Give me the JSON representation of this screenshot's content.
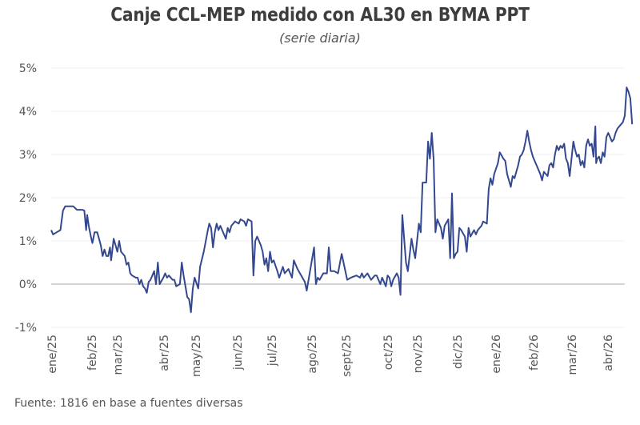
{
  "chart_data": {
    "type": "line",
    "title": "Canje CCL-MEP medido con AL30 en BYMA PPT",
    "subtitle": "(serie diaria)",
    "xlabel": "",
    "ylabel": "",
    "ylim": [
      -1,
      5
    ],
    "xlim": [
      0,
      15.6
    ],
    "grid": true,
    "legend": "none",
    "yticks": [
      -1,
      0,
      1,
      2,
      3,
      4,
      5
    ],
    "ytick_labels": [
      "-1%",
      "0%",
      "1%",
      "2%",
      "3%",
      "4%",
      "5%"
    ],
    "xtick_labels": [
      "ene/25",
      "feb/25",
      "mar/25",
      "abr/25",
      "may/25",
      "jun/25",
      "jul/25",
      "ago/25",
      "sept/25",
      "oct/25",
      "nov/25",
      "dic/25",
      "ene/26",
      "feb/26",
      "mar/26",
      "abr/26"
    ],
    "series": [
      {
        "name": "Canje CCL-MEP AL30",
        "color": "#34488f",
        "x_unit": "months since ene/25",
        "points": [
          [
            0.0,
            1.25
          ],
          [
            0.05,
            1.15
          ],
          [
            0.15,
            1.2
          ],
          [
            0.25,
            1.25
          ],
          [
            0.32,
            1.7
          ],
          [
            0.38,
            1.8
          ],
          [
            0.5,
            1.8
          ],
          [
            0.6,
            1.8
          ],
          [
            0.7,
            1.72
          ],
          [
            0.85,
            1.72
          ],
          [
            0.9,
            1.7
          ],
          [
            0.95,
            1.25
          ],
          [
            0.98,
            1.6
          ],
          [
            1.02,
            1.35
          ],
          [
            1.08,
            1.1
          ],
          [
            1.12,
            0.95
          ],
          [
            1.18,
            1.2
          ],
          [
            1.25,
            1.2
          ],
          [
            1.3,
            1.05
          ],
          [
            1.35,
            0.9
          ],
          [
            1.4,
            0.65
          ],
          [
            1.45,
            0.8
          ],
          [
            1.5,
            0.65
          ],
          [
            1.55,
            0.65
          ],
          [
            1.6,
            0.85
          ],
          [
            1.63,
            0.55
          ],
          [
            1.7,
            1.05
          ],
          [
            1.75,
            0.9
          ],
          [
            1.8,
            0.75
          ],
          [
            1.85,
            1.0
          ],
          [
            1.9,
            0.75
          ],
          [
            2.0,
            0.65
          ],
          [
            2.05,
            0.45
          ],
          [
            2.1,
            0.5
          ],
          [
            2.15,
            0.25
          ],
          [
            2.2,
            0.2
          ],
          [
            2.3,
            0.15
          ],
          [
            2.35,
            0.15
          ],
          [
            2.4,
            0.0
          ],
          [
            2.45,
            0.1
          ],
          [
            2.5,
            -0.05
          ],
          [
            2.55,
            -0.1
          ],
          [
            2.6,
            -0.2
          ],
          [
            2.65,
            0.05
          ],
          [
            2.7,
            0.1
          ],
          [
            2.8,
            0.3
          ],
          [
            2.85,
            0.0
          ],
          [
            2.9,
            0.5
          ],
          [
            2.95,
            0.0
          ],
          [
            3.05,
            0.15
          ],
          [
            3.1,
            0.25
          ],
          [
            3.15,
            0.15
          ],
          [
            3.2,
            0.2
          ],
          [
            3.3,
            0.1
          ],
          [
            3.35,
            0.1
          ],
          [
            3.4,
            -0.05
          ],
          [
            3.5,
            0.0
          ],
          [
            3.55,
            0.5
          ],
          [
            3.6,
            0.2
          ],
          [
            3.7,
            -0.3
          ],
          [
            3.75,
            -0.35
          ],
          [
            3.8,
            -0.65
          ],
          [
            3.85,
            -0.1
          ],
          [
            3.9,
            0.15
          ],
          [
            4.0,
            -0.1
          ],
          [
            4.05,
            0.4
          ],
          [
            4.15,
            0.75
          ],
          [
            4.25,
            1.2
          ],
          [
            4.3,
            1.4
          ],
          [
            4.35,
            1.3
          ],
          [
            4.4,
            0.85
          ],
          [
            4.45,
            1.2
          ],
          [
            4.5,
            1.4
          ],
          [
            4.55,
            1.25
          ],
          [
            4.6,
            1.35
          ],
          [
            4.7,
            1.15
          ],
          [
            4.75,
            1.05
          ],
          [
            4.8,
            1.3
          ],
          [
            4.85,
            1.2
          ],
          [
            4.9,
            1.35
          ],
          [
            5.0,
            1.45
          ],
          [
            5.1,
            1.4
          ],
          [
            5.15,
            1.5
          ],
          [
            5.25,
            1.45
          ],
          [
            5.3,
            1.35
          ],
          [
            5.35,
            1.5
          ],
          [
            5.45,
            1.45
          ],
          [
            5.5,
            0.2
          ],
          [
            5.55,
            1.0
          ],
          [
            5.6,
            1.1
          ],
          [
            5.7,
            0.9
          ],
          [
            5.75,
            0.75
          ],
          [
            5.8,
            0.45
          ],
          [
            5.85,
            0.6
          ],
          [
            5.9,
            0.3
          ],
          [
            5.95,
            0.75
          ],
          [
            6.0,
            0.5
          ],
          [
            6.05,
            0.55
          ],
          [
            6.15,
            0.3
          ],
          [
            6.2,
            0.15
          ],
          [
            6.3,
            0.4
          ],
          [
            6.35,
            0.25
          ],
          [
            6.45,
            0.35
          ],
          [
            6.55,
            0.15
          ],
          [
            6.6,
            0.55
          ],
          [
            6.7,
            0.35
          ],
          [
            6.8,
            0.2
          ],
          [
            6.9,
            0.05
          ],
          [
            6.95,
            -0.15
          ],
          [
            7.05,
            0.35
          ],
          [
            7.15,
            0.85
          ],
          [
            7.2,
            0.0
          ],
          [
            7.25,
            0.15
          ],
          [
            7.3,
            0.1
          ],
          [
            7.4,
            0.25
          ],
          [
            7.5,
            0.25
          ],
          [
            7.55,
            0.85
          ],
          [
            7.6,
            0.3
          ],
          [
            7.7,
            0.3
          ],
          [
            7.8,
            0.25
          ],
          [
            7.9,
            0.7
          ],
          [
            7.95,
            0.5
          ],
          [
            8.05,
            0.1
          ],
          [
            8.15,
            0.15
          ],
          [
            8.3,
            0.2
          ],
          [
            8.4,
            0.15
          ],
          [
            8.45,
            0.25
          ],
          [
            8.5,
            0.15
          ],
          [
            8.6,
            0.25
          ],
          [
            8.7,
            0.1
          ],
          [
            8.8,
            0.2
          ],
          [
            8.85,
            0.2
          ],
          [
            8.95,
            0.0
          ],
          [
            9.0,
            0.15
          ],
          [
            9.05,
            0.05
          ],
          [
            9.1,
            -0.05
          ],
          [
            9.15,
            0.2
          ],
          [
            9.2,
            0.15
          ],
          [
            9.25,
            -0.05
          ],
          [
            9.3,
            0.1
          ],
          [
            9.4,
            0.25
          ],
          [
            9.45,
            0.15
          ],
          [
            9.5,
            -0.25
          ],
          [
            9.55,
            1.6
          ],
          [
            9.65,
            0.5
          ],
          [
            9.7,
            0.3
          ],
          [
            9.8,
            1.05
          ],
          [
            9.85,
            0.8
          ],
          [
            9.9,
            0.6
          ],
          [
            10.0,
            1.4
          ],
          [
            10.05,
            1.2
          ],
          [
            10.1,
            2.35
          ],
          [
            10.2,
            2.35
          ],
          [
            10.25,
            3.3
          ],
          [
            10.3,
            2.9
          ],
          [
            10.35,
            3.5
          ],
          [
            10.4,
            2.9
          ],
          [
            10.45,
            1.2
          ],
          [
            10.5,
            1.5
          ],
          [
            10.6,
            1.3
          ],
          [
            10.65,
            1.05
          ],
          [
            10.7,
            1.35
          ],
          [
            10.8,
            1.5
          ],
          [
            10.85,
            0.6
          ],
          [
            10.9,
            2.1
          ],
          [
            10.95,
            0.6
          ],
          [
            11.0,
            0.7
          ],
          [
            11.05,
            0.75
          ],
          [
            11.1,
            1.3
          ],
          [
            11.15,
            1.25
          ],
          [
            11.25,
            1.1
          ],
          [
            11.3,
            0.75
          ],
          [
            11.35,
            1.3
          ],
          [
            11.4,
            1.1
          ],
          [
            11.5,
            1.25
          ],
          [
            11.55,
            1.15
          ],
          [
            11.6,
            1.25
          ],
          [
            11.7,
            1.35
          ],
          [
            11.75,
            1.45
          ],
          [
            11.85,
            1.4
          ],
          [
            11.9,
            2.2
          ],
          [
            11.95,
            2.45
          ],
          [
            12.0,
            2.3
          ],
          [
            12.05,
            2.55
          ],
          [
            12.15,
            2.8
          ],
          [
            12.2,
            3.05
          ],
          [
            12.3,
            2.9
          ],
          [
            12.35,
            2.85
          ],
          [
            12.4,
            2.55
          ],
          [
            12.45,
            2.4
          ],
          [
            12.5,
            2.25
          ],
          [
            12.55,
            2.5
          ],
          [
            12.6,
            2.45
          ],
          [
            12.7,
            2.75
          ],
          [
            12.75,
            2.95
          ],
          [
            12.8,
            3.0
          ],
          [
            12.85,
            3.1
          ],
          [
            12.9,
            3.3
          ],
          [
            12.95,
            3.55
          ],
          [
            13.0,
            3.3
          ],
          [
            13.05,
            3.1
          ],
          [
            13.1,
            2.95
          ],
          [
            13.15,
            2.85
          ],
          [
            13.2,
            2.75
          ],
          [
            13.3,
            2.55
          ],
          [
            13.35,
            2.4
          ],
          [
            13.4,
            2.6
          ],
          [
            13.5,
            2.5
          ],
          [
            13.55,
            2.75
          ],
          [
            13.6,
            2.8
          ],
          [
            13.65,
            2.7
          ],
          [
            13.7,
            3.0
          ],
          [
            13.75,
            3.2
          ],
          [
            13.8,
            3.1
          ],
          [
            13.85,
            3.2
          ],
          [
            13.9,
            3.15
          ],
          [
            13.95,
            3.25
          ],
          [
            14.0,
            2.9
          ],
          [
            14.05,
            2.8
          ],
          [
            14.1,
            2.5
          ],
          [
            14.15,
            2.9
          ],
          [
            14.2,
            3.3
          ],
          [
            14.25,
            3.1
          ],
          [
            14.3,
            2.95
          ],
          [
            14.35,
            3.0
          ],
          [
            14.4,
            2.75
          ],
          [
            14.45,
            2.85
          ],
          [
            14.5,
            2.7
          ],
          [
            14.55,
            3.2
          ],
          [
            14.6,
            3.35
          ],
          [
            14.65,
            3.2
          ],
          [
            14.7,
            3.25
          ],
          [
            14.75,
            2.95
          ],
          [
            14.8,
            3.65
          ],
          [
            14.82,
            2.8
          ],
          [
            14.85,
            2.9
          ],
          [
            14.9,
            2.95
          ],
          [
            14.95,
            2.8
          ],
          [
            15.0,
            3.05
          ],
          [
            15.05,
            2.95
          ],
          [
            15.1,
            3.4
          ],
          [
            15.15,
            3.5
          ],
          [
            15.2,
            3.4
          ],
          [
            15.25,
            3.3
          ],
          [
            15.3,
            3.35
          ],
          [
            15.35,
            3.5
          ],
          [
            15.4,
            3.6
          ],
          [
            15.5,
            3.7
          ],
          [
            15.55,
            3.75
          ],
          [
            15.6,
            3.9
          ],
          [
            15.65,
            4.55
          ],
          [
            15.7,
            4.45
          ],
          [
            15.75,
            4.3
          ],
          [
            15.8,
            3.7
          ]
        ]
      }
    ]
  },
  "footer": {
    "source": "Fuente: 1816 en base a fuentes diversas"
  }
}
